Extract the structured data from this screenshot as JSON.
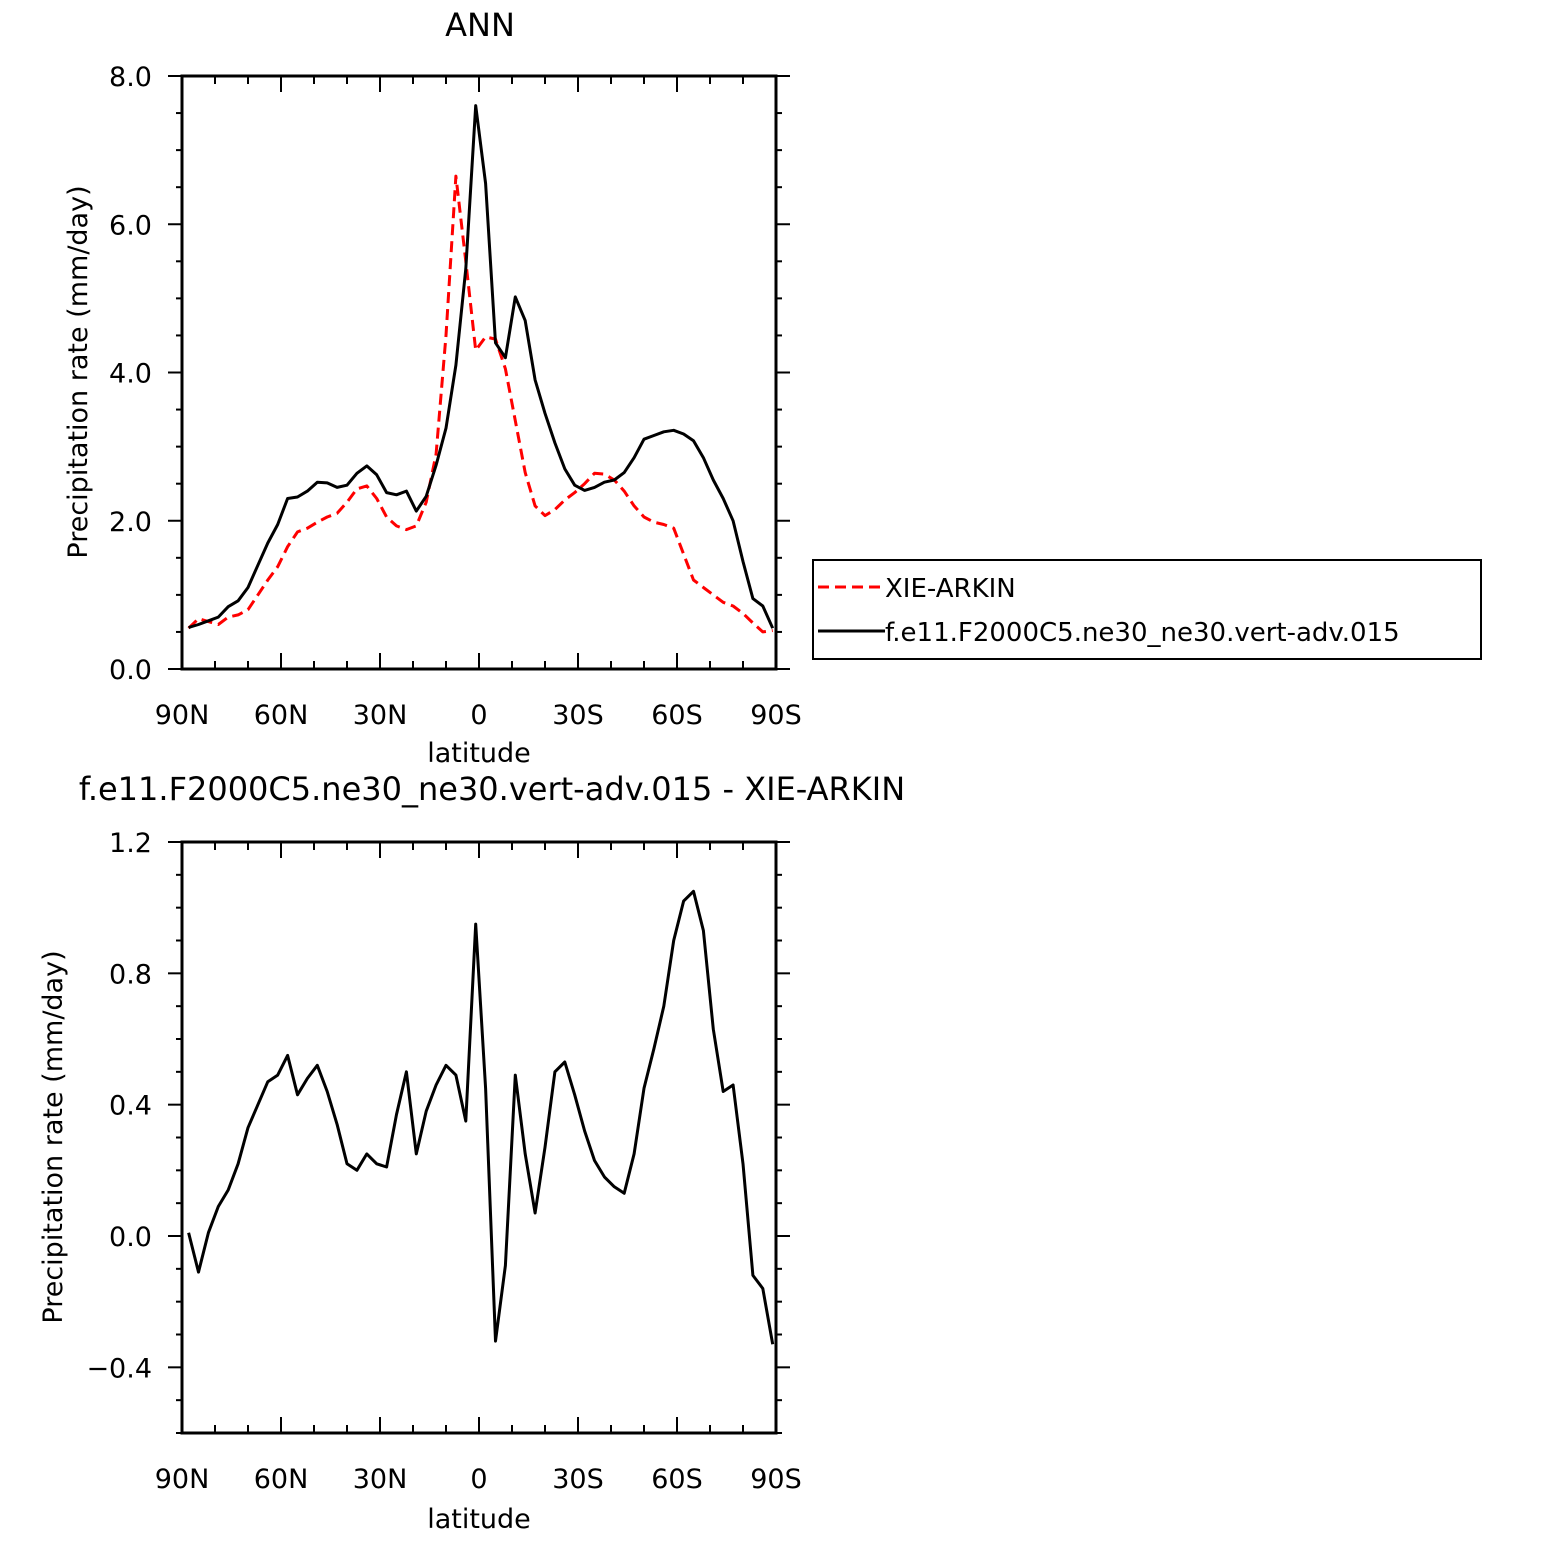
{
  "chart_data": [
    {
      "type": "line",
      "title": "ANN",
      "xlabel": "latitude",
      "ylabel": "Precipitation rate (mm/day)",
      "xlim": [
        90,
        -90
      ],
      "ylim": [
        0.0,
        8.0
      ],
      "xticks": [
        90,
        60,
        30,
        0,
        -30,
        -60,
        -90
      ],
      "xtick_labels": [
        "90N",
        "60N",
        "30N",
        "0",
        "30S",
        "60S",
        "90S"
      ],
      "yticks": [
        0.0,
        2.0,
        4.0,
        6.0,
        8.0
      ],
      "ytick_labels": [
        "0.0",
        "2.0",
        "4.0",
        "6.0",
        "8.0"
      ],
      "grid": false,
      "legend_position": "right",
      "series": [
        {
          "name": "XIE-ARKIN",
          "color": "#ff0000",
          "dash": "dashed",
          "x": [
            88,
            85,
            82,
            79,
            76,
            73,
            70,
            67,
            64,
            61,
            58,
            55,
            52,
            49,
            46,
            43,
            40,
            37,
            34,
            31,
            28,
            25,
            22,
            19,
            16,
            13,
            10,
            7,
            4,
            1,
            -2,
            -5,
            -8,
            -11,
            -14,
            -17,
            -20,
            -23,
            -26,
            -29,
            -32,
            -35,
            -38,
            -41,
            -44,
            -47,
            -50,
            -53,
            -56,
            -59,
            -62,
            -65,
            -68,
            -71,
            -74,
            -77,
            -80,
            -83,
            -86,
            -89
          ],
          "y": [
            0.55,
            0.68,
            0.64,
            0.6,
            0.7,
            0.73,
            0.8,
            1.0,
            1.2,
            1.38,
            1.65,
            1.85,
            1.9,
            1.98,
            2.05,
            2.1,
            2.25,
            2.43,
            2.47,
            2.3,
            2.05,
            1.93,
            1.88,
            1.93,
            2.25,
            2.9,
            4.5,
            6.65,
            5.5,
            4.3,
            4.48,
            4.45,
            4.05,
            3.35,
            2.65,
            2.2,
            2.07,
            2.15,
            2.28,
            2.38,
            2.5,
            2.64,
            2.63,
            2.55,
            2.4,
            2.2,
            2.05,
            1.98,
            1.95,
            1.9,
            1.55,
            1.2,
            1.1,
            1.0,
            0.9,
            0.85,
            0.75,
            0.62,
            0.5,
            0.52
          ]
        },
        {
          "name": "f.e11.F2000C5.ne30_ne30.vert-adv.015",
          "color": "#000000",
          "dash": "solid",
          "x": [
            88,
            85,
            82,
            79,
            76,
            73,
            70,
            67,
            64,
            61,
            58,
            55,
            52,
            49,
            46,
            43,
            40,
            37,
            34,
            31,
            28,
            25,
            22,
            19,
            16,
            13,
            10,
            7,
            4,
            1,
            -2,
            -5,
            -8,
            -11,
            -14,
            -17,
            -20,
            -23,
            -26,
            -29,
            -32,
            -35,
            -38,
            -41,
            -44,
            -47,
            -50,
            -53,
            -56,
            -59,
            -62,
            -65,
            -68,
            -71,
            -74,
            -77,
            -80,
            -83,
            -86,
            -89
          ],
          "y": [
            0.56,
            0.6,
            0.65,
            0.7,
            0.84,
            0.92,
            1.1,
            1.4,
            1.7,
            1.95,
            2.3,
            2.32,
            2.4,
            2.52,
            2.51,
            2.45,
            2.48,
            2.64,
            2.74,
            2.62,
            2.38,
            2.35,
            2.4,
            2.13,
            2.33,
            2.75,
            3.25,
            4.1,
            5.4,
            7.6,
            6.55,
            4.4,
            4.2,
            5.02,
            4.7,
            3.9,
            3.45,
            3.05,
            2.7,
            2.48,
            2.41,
            2.45,
            2.52,
            2.55,
            2.65,
            2.85,
            3.1,
            3.15,
            3.2,
            3.22,
            3.17,
            3.08,
            2.85,
            2.55,
            2.3,
            2.0,
            1.45,
            0.95,
            0.85,
            0.55
          ]
        }
      ]
    },
    {
      "type": "line",
      "title": "f.e11.F2000C5.ne30_ne30.vert-adv.015 - XIE-ARKIN",
      "xlabel": "latitude",
      "ylabel": "Precipitation rate (mm/day)",
      "xlim": [
        90,
        -90
      ],
      "ylim": [
        -0.6,
        1.2
      ],
      "xticks": [
        90,
        60,
        30,
        0,
        -30,
        -60,
        -90
      ],
      "xtick_labels": [
        "90N",
        "60N",
        "30N",
        "0",
        "30S",
        "60S",
        "90S"
      ],
      "yticks": [
        -0.4,
        0.0,
        0.4,
        0.8,
        1.2
      ],
      "ytick_labels": [
        "−0.4",
        "0.0",
        "0.4",
        "0.8",
        "1.2"
      ],
      "grid": false,
      "series": [
        {
          "color": "#000000",
          "dash": "solid",
          "x": [
            88,
            85,
            82,
            79,
            76,
            73,
            70,
            67,
            64,
            61,
            58,
            55,
            52,
            49,
            46,
            43,
            40,
            37,
            34,
            31,
            28,
            25,
            22,
            19,
            16,
            13,
            10,
            7,
            4,
            1,
            -2,
            -5,
            -8,
            -11,
            -14,
            -17,
            -20,
            -23,
            -26,
            -29,
            -32,
            -35,
            -38,
            -41,
            -44,
            -47,
            -50,
            -53,
            -56,
            -59,
            -62,
            -65,
            -68,
            -71,
            -74,
            -77,
            -80,
            -83,
            -86,
            -89
          ],
          "y": [
            0.01,
            -0.11,
            0.01,
            0.09,
            0.14,
            0.22,
            0.33,
            0.4,
            0.47,
            0.49,
            0.55,
            0.43,
            0.48,
            0.52,
            0.44,
            0.34,
            0.22,
            0.2,
            0.25,
            0.22,
            0.21,
            0.37,
            0.5,
            0.25,
            0.38,
            0.46,
            0.52,
            0.49,
            0.35,
            0.95,
            0.45,
            -0.32,
            -0.09,
            0.49,
            0.25,
            0.07,
            0.27,
            0.5,
            0.53,
            0.43,
            0.32,
            0.23,
            0.18,
            0.15,
            0.13,
            0.25,
            0.45,
            0.57,
            0.7,
            0.9,
            1.02,
            1.05,
            0.93,
            0.63,
            0.44,
            0.46,
            0.22,
            -0.12,
            -0.16,
            -0.33
          ]
        }
      ]
    }
  ]
}
